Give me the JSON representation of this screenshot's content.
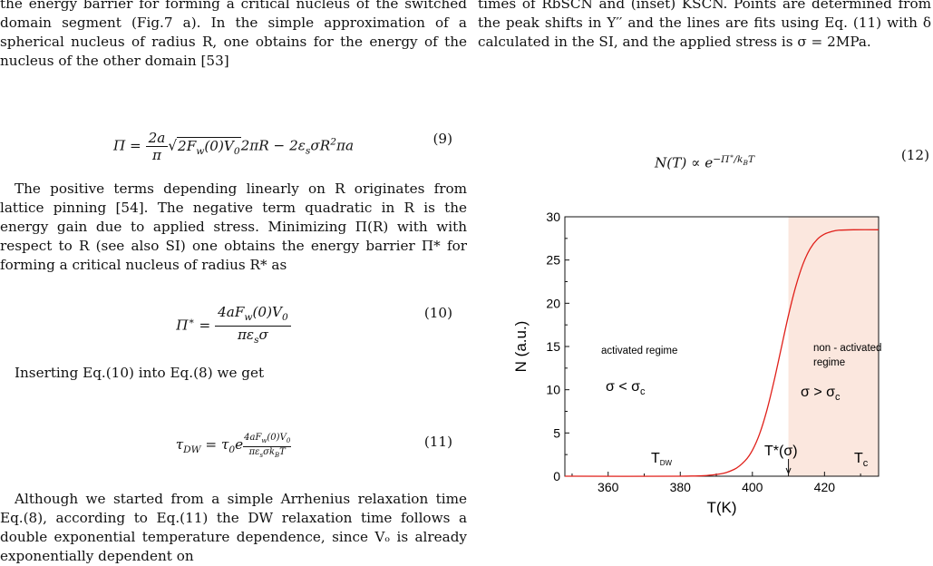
{
  "left": {
    "p1": "the energy barrier for forming a critical nucleus of the switched domain segment (Fig.7 a). In the simple approximation of a spherical nucleus of radius R, one obtains for the energy of the nucleus of the other domain [53]",
    "eq9_num": "(9)",
    "p2": "The positive terms depending linearly on R originates from lattice pinning [54]. The negative term quadratic in R is the energy gain due to applied stress. Minimizing Π(R) with with respect to R (see also SI) one obtains the energy barrier Π* for forming a critical nucleus of radius R* as",
    "eq10_num": "(10)",
    "p3": "Inserting Eq.(10) into Eq.(8) we get",
    "eq11_num": "(11)",
    "p4": "Although we started from a simple Arrhenius relaxation time Eq.(8), according to Eq.(11) the DW relaxation time follows a double exponential temperature dependence, since Vₒ is already exponentially dependent on"
  },
  "right": {
    "caption": "times of RbSCN and (inset) KSCN. Points are determined from the peak shifts in Y′′ and the lines are fits using Eq. (11) with δ calculated in the SI, and the applied stress is σ = 2MPa.",
    "eq12_num": "(12)"
  },
  "chart_data": {
    "type": "line",
    "xlabel": "T(K)",
    "ylabel": "N (a.u.)",
    "xlim": [
      348,
      435
    ],
    "ylim": [
      0,
      30
    ],
    "xticks": [
      360,
      380,
      400,
      420
    ],
    "yticks": [
      0,
      5,
      10,
      15,
      20,
      25,
      30
    ],
    "series": [
      {
        "color": "#e0201a",
        "x": [
          348,
          380,
          390,
          395,
          398,
          400,
          402,
          404,
          406,
          408,
          410,
          412,
          414,
          416,
          418,
          420,
          422,
          424,
          428,
          435
        ],
        "y": [
          0,
          0,
          0.2,
          0.8,
          1.8,
          3.0,
          4.9,
          7.6,
          11.0,
          14.8,
          18.6,
          21.9,
          24.5,
          26.3,
          27.4,
          28.0,
          28.3,
          28.45,
          28.5,
          28.5
        ]
      }
    ],
    "shaded_region": {
      "x_from": 410,
      "x_to": 435,
      "color": "#fbe7de"
    },
    "annotations": {
      "activated": "activated regime",
      "sigma_lt": "σ < σ",
      "sigma_lt_sub": "c",
      "nonactivated_1": "non - activated",
      "nonactivated_2": "regime",
      "sigma_gt": "σ > σ",
      "sigma_gt_sub": "c",
      "tdw": "T",
      "tdw_sub": "DW",
      "tstar": "T*(σ)",
      "tc": "T",
      "tc_sub": "c"
    }
  }
}
